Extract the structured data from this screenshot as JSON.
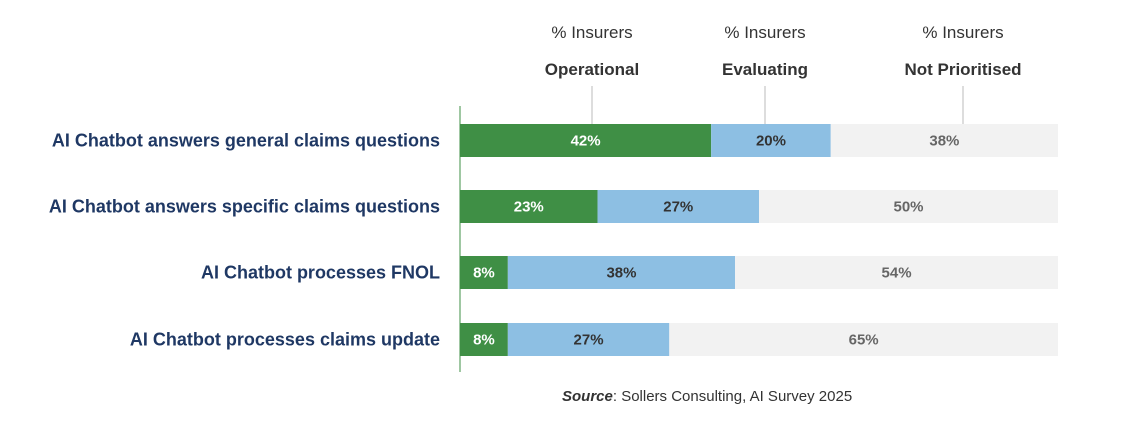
{
  "chart_data": {
    "type": "bar",
    "orientation": "horizontal",
    "stacked": true,
    "normalized": true,
    "categories": [
      "AI Chatbot answers general claims questions",
      "AI Chatbot answers specific claims questions",
      "AI Chatbot processes FNOL",
      "AI Chatbot processes claims update"
    ],
    "series": [
      {
        "name": "Operational",
        "header_top": "% Insurers",
        "header_bottom": "Operational",
        "color": "#3f8f45",
        "label_color": "#ffffff",
        "values": [
          42,
          23,
          8,
          8
        ]
      },
      {
        "name": "Evaluating",
        "header_top": "% Insurers",
        "header_bottom": "Evaluating",
        "color": "#8dbfe3",
        "label_color": "#333333",
        "values": [
          20,
          27,
          38,
          27
        ]
      },
      {
        "name": "Not Prioritised",
        "header_top": "% Insurers",
        "header_bottom": "Not Prioritised",
        "color": "#f2f2f2",
        "label_color": "#666666",
        "values": [
          38,
          50,
          54,
          65
        ]
      }
    ],
    "value_suffix": "%",
    "xlim": [
      0,
      100
    ],
    "category_label_color": "#1f3864",
    "axis_color": "#3f8f45",
    "guide_color": "#bbbbbb"
  },
  "source": {
    "lead": "Source",
    "text": ": Sollers Consulting, AI Survey 2025"
  }
}
